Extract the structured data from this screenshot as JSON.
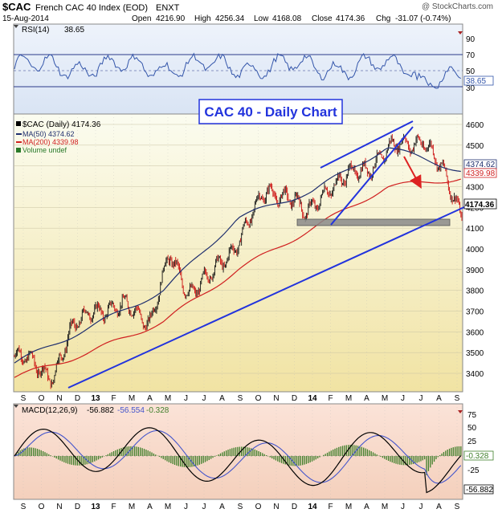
{
  "header": {
    "symbol": "$CAC",
    "name": "French CAC 40 Index (EOD)",
    "exchange": "ENXT",
    "watermark": "@ StockCharts.com",
    "date": "15-Aug-2014",
    "open_label": "Open",
    "open": "4216.90",
    "high_label": "High",
    "high": "4256.34",
    "low_label": "Low",
    "low": "4168.08",
    "close_label": "Close",
    "close": "4174.36",
    "chg_label": "Chg",
    "chg": "-31.07 (-0.74%)"
  },
  "rsi": {
    "label": "RSI(14)",
    "value": "38.65",
    "ticks": [
      "90",
      "70",
      "50",
      "30"
    ],
    "last_tag": "38.65",
    "color": "#3355aa"
  },
  "main": {
    "annotation": "CAC 40 - Daily Chart",
    "legend": [
      {
        "text": "$CAC (Daily) 4174.36",
        "color": "#000000"
      },
      {
        "text": "MA(50) 4374.62",
        "color": "#1f2f6e"
      },
      {
        "text": "MA(200) 4339.98",
        "color": "#d02020"
      },
      {
        "text": "Volume undef",
        "color": "#2a7a2a"
      }
    ],
    "y_ticks": [
      "4600",
      "4500",
      "4400",
      "4300",
      "4200",
      "4100",
      "4000",
      "3900",
      "3800",
      "3700",
      "3600",
      "3500",
      "3400"
    ],
    "tags": [
      {
        "text": "4374.62",
        "value": 4374.62,
        "color": "#1f2f6e",
        "bold": false
      },
      {
        "text": "4339.98",
        "value": 4339.98,
        "color": "#d02020",
        "bold": false
      },
      {
        "text": "4174.36",
        "value": 4174.36,
        "color": "#000000",
        "bold": true
      }
    ]
  },
  "macd": {
    "label": "MACD(12,26,9)",
    "macd": "-56.882",
    "signal": "-56.554",
    "hist": "-0.328",
    "ticks": [
      "75",
      "50",
      "25",
      "-25",
      "-50"
    ],
    "tags": [
      "-0.328",
      "-56.882"
    ]
  },
  "x_axis": {
    "labels": [
      "S",
      "O",
      "N",
      "D",
      "13",
      "F",
      "M",
      "A",
      "M",
      "J",
      "J",
      "A",
      "S",
      "O",
      "N",
      "D",
      "14",
      "F",
      "M",
      "A",
      "M",
      "J",
      "J",
      "A",
      "S"
    ]
  },
  "colors": {
    "price_up": "#111111",
    "price_down": "#cc1111",
    "ma50": "#1f2f6e",
    "ma200": "#d02020",
    "trendline": "#2233dd",
    "support_box": "#8a8a8a",
    "arrow": "#dd2222",
    "macd_line": "#000000",
    "signal_line": "#4455cc",
    "histogram": "#3f7f2a"
  },
  "chart_data": {
    "type": "line",
    "title": "CAC 40 - Daily Chart",
    "series": [
      {
        "name": "$CAC (Daily) 4174.36",
        "x": [
          "2012-09",
          "2012-10",
          "2012-11",
          "2012-12",
          "2013-01",
          "2013-02",
          "2013-03",
          "2013-04",
          "2013-05",
          "2013-06",
          "2013-07",
          "2013-08",
          "2013-09",
          "2013-10",
          "2013-11",
          "2013-12",
          "2014-01",
          "2014-02",
          "2014-03",
          "2014-04",
          "2014-05",
          "2014-06",
          "2014-07",
          "2014-08-15"
        ],
        "values": [
          3480,
          3440,
          3400,
          3600,
          3730,
          3690,
          3730,
          3650,
          3960,
          3800,
          3850,
          3980,
          4120,
          4280,
          4270,
          4150,
          4300,
          4330,
          4390,
          4460,
          4500,
          4540,
          4360,
          4174
        ]
      },
      {
        "name": "MA(50) 4374.62",
        "x": [
          "2012-09",
          "2013-01",
          "2013-06",
          "2013-10",
          "2014-01",
          "2014-06",
          "2014-08-15"
        ],
        "values": [
          3450,
          3620,
          3800,
          4150,
          4280,
          4490,
          4375
        ]
      },
      {
        "name": "MA(200) 4339.98",
        "x": [
          "2012-09",
          "2013-01",
          "2013-06",
          "2013-10",
          "2014-01",
          "2014-06",
          "2014-08-15"
        ],
        "values": [
          3380,
          3500,
          3650,
          3900,
          4100,
          4300,
          4340
        ]
      }
    ],
    "ylim": [
      3300,
      4650
    ],
    "y_ticks": [
      3400,
      3500,
      3600,
      3700,
      3800,
      3900,
      4000,
      4100,
      4200,
      4300,
      4400,
      4500,
      4600
    ],
    "legend": "top-left",
    "grid": true
  }
}
